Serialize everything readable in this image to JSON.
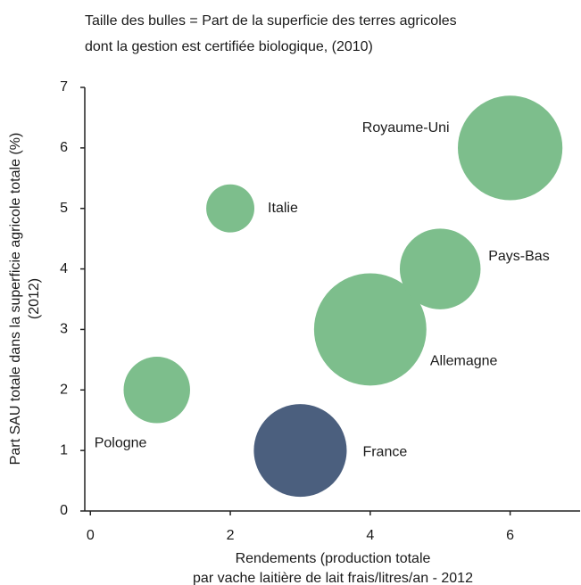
{
  "chart_data": {
    "type": "scatter",
    "title": [
      "Taille des bulles = Part de la superficie des terres agricoles",
      "dont la gestion est certifiée biologique, (2010)"
    ],
    "xlabel": [
      "Rendements (production totale",
      "par vache laitière de lait frais/litres/an - 2012"
    ],
    "ylabel": [
      "Part SAU totale dans la superficie agricole totale (%)",
      "(2012)"
    ],
    "labels": [
      "Pologne",
      "Italie",
      "France",
      "Allemagne",
      "Pays-Bas",
      "Royaume-Uni"
    ],
    "x": [
      0.95,
      2,
      3,
      4,
      5,
      6
    ],
    "values": [
      2,
      5,
      1,
      3,
      4,
      6
    ],
    "sizes": [
      2.1,
      1.1,
      4.1,
      6,
      3.1,
      5.2
    ],
    "colors": [
      "#7dbe8c",
      "#7dbe8c",
      "#4b5f7e",
      "#7dbe8c",
      "#7dbe8c",
      "#7dbe8c"
    ],
    "xlim": [
      -0.08,
      7
    ],
    "ylim": [
      0,
      7
    ],
    "xticks": [
      0,
      2,
      4,
      6
    ],
    "yticks": [
      0,
      1,
      2,
      3,
      4,
      5,
      6,
      7
    ]
  }
}
